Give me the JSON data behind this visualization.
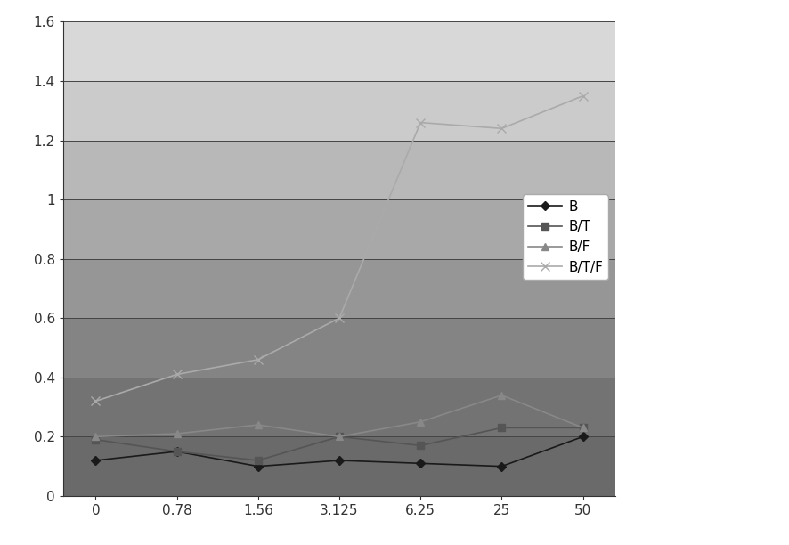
{
  "x_labels": [
    "0",
    "0.78",
    "1.56",
    "3.125",
    "6.25",
    "25",
    "50"
  ],
  "x_positions": [
    0,
    1,
    2,
    3,
    4,
    5,
    6
  ],
  "series": {
    "B": {
      "values": [
        0.12,
        0.15,
        0.1,
        0.12,
        0.11,
        0.1,
        0.2
      ],
      "color": "#1a1a1a",
      "marker": "D",
      "linestyle": "-",
      "markersize": 5
    },
    "B/T": {
      "values": [
        0.19,
        0.15,
        0.12,
        0.2,
        0.17,
        0.23,
        0.23
      ],
      "color": "#555555",
      "marker": "s",
      "linestyle": "-",
      "markersize": 6
    },
    "B/F": {
      "values": [
        0.2,
        0.21,
        0.24,
        0.2,
        0.25,
        0.34,
        0.23
      ],
      "color": "#888888",
      "marker": "^",
      "linestyle": "-",
      "markersize": 6
    },
    "B/T/F": {
      "values": [
        0.32,
        0.41,
        0.46,
        0.6,
        1.26,
        1.24,
        1.35
      ],
      "color": "#aaaaaa",
      "marker": "x",
      "linestyle": "-",
      "markersize": 7
    }
  },
  "ylim": [
    0,
    1.6
  ],
  "yticks": [
    0,
    0.2,
    0.4,
    0.6,
    0.8,
    1.0,
    1.2,
    1.4,
    1.6
  ],
  "ytick_labels": [
    "0",
    "0.2",
    "0.4",
    "0.6",
    "0.8",
    "1",
    "1.2",
    "1.4",
    "1.6"
  ],
  "background_bands": [
    {
      "ymin": 0.0,
      "ymax": 0.2,
      "color": "#6a6a6a"
    },
    {
      "ymin": 0.2,
      "ymax": 0.4,
      "color": "#737373"
    },
    {
      "ymin": 0.4,
      "ymax": 0.6,
      "color": "#848484"
    },
    {
      "ymin": 0.6,
      "ymax": 0.8,
      "color": "#969696"
    },
    {
      "ymin": 0.8,
      "ymax": 1.0,
      "color": "#a8a8a8"
    },
    {
      "ymin": 1.0,
      "ymax": 1.2,
      "color": "#b8b8b8"
    },
    {
      "ymin": 1.2,
      "ymax": 1.4,
      "color": "#cbcbcb"
    },
    {
      "ymin": 1.4,
      "ymax": 1.6,
      "color": "#d8d8d8"
    }
  ],
  "grid_color": "#444444",
  "figure_bg": "#ffffff",
  "series_order": [
    "B",
    "B/T",
    "B/F",
    "B/T/F"
  ]
}
